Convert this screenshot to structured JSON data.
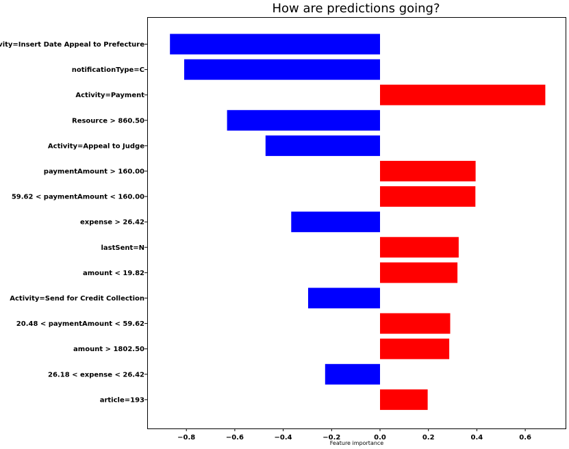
{
  "chart_data": {
    "type": "bar",
    "orientation": "horizontal",
    "title": "How are predictions going?",
    "xlabel": "Feature importance",
    "ylabel": "",
    "xlim": [
      -0.95,
      0.76
    ],
    "xticks": [
      -0.8,
      -0.6,
      -0.4,
      -0.2,
      0.0,
      0.2,
      0.4,
      0.6
    ],
    "xtick_labels": [
      "−0.8",
      "−0.6",
      "−0.4",
      "−0.2",
      "0.0",
      "0.2",
      "0.4",
      "0.6"
    ],
    "grid": false,
    "categories": [
      "Activity=Insert Date Appeal to Prefecture",
      "notificationType=C",
      "Activity=Payment",
      "Resource > 860.50",
      "Activity=Appeal to Judge",
      "paymentAmount > 160.00",
      "59.62 < paymentAmount < 160.00",
      "expense > 26.42",
      "lastSent=N",
      "amount < 19.82",
      "Activity=Send for Credit Collection",
      "20.48 < paymentAmount < 59.62",
      "amount > 1802.50",
      "26.18 < expense < 26.42",
      "article=193"
    ],
    "values": [
      -0.868,
      -0.809,
      0.683,
      -0.632,
      -0.473,
      0.395,
      0.394,
      -0.367,
      0.325,
      0.32,
      -0.297,
      0.29,
      0.286,
      -0.227,
      0.197
    ],
    "colors": {
      "positive": "#ff0000",
      "negative": "#0000ff"
    }
  }
}
